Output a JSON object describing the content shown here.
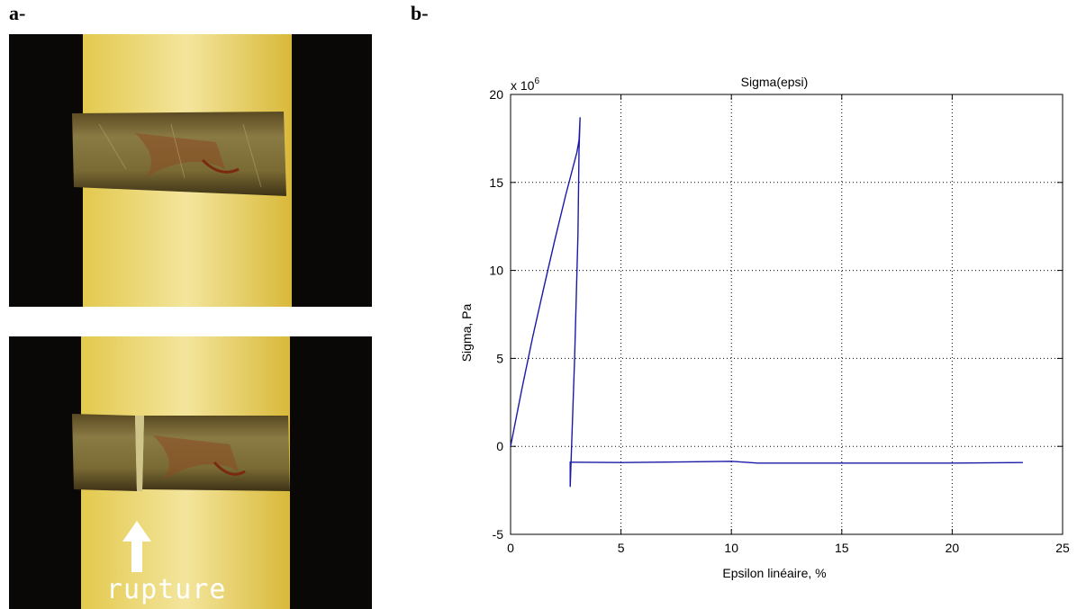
{
  "panels": {
    "a_label": "a-",
    "b_label": "b-"
  },
  "photo": {
    "annotation": "rupture"
  },
  "colors": {
    "series": "#1a1aa8",
    "background_yellow": "#e6d06a",
    "sample_brown": "#7a6a30"
  },
  "chart_data": {
    "type": "line",
    "title": "Sigma(epsi)",
    "xlabel": "Epsilon linéaire, %",
    "ylabel": "Sigma, Pa",
    "y_multiplier": "x 10",
    "y_multiplier_exp": "6",
    "xlim": [
      0,
      25
    ],
    "ylim": [
      -5,
      20
    ],
    "xticks": [
      0,
      5,
      10,
      15,
      20,
      25
    ],
    "yticks": [
      -5,
      0,
      5,
      10,
      15,
      20
    ],
    "grid": true,
    "series": [
      {
        "x": [
          0,
          0.5,
          1,
          1.5,
          2,
          2.5,
          3.0,
          3.1,
          3.15,
          3.1,
          3.05,
          2.9,
          2.7,
          2.7,
          2.8,
          5,
          8,
          10,
          11.2,
          15,
          20,
          23.2
        ],
        "y": [
          0,
          3.2,
          6.2,
          9.0,
          11.7,
          14.3,
          16.7,
          17.4,
          18.7,
          16.8,
          12,
          5,
          -2.3,
          -0.9,
          -0.9,
          -0.92,
          -0.88,
          -0.85,
          -0.95,
          -0.95,
          -0.95,
          -0.92
        ]
      }
    ]
  }
}
